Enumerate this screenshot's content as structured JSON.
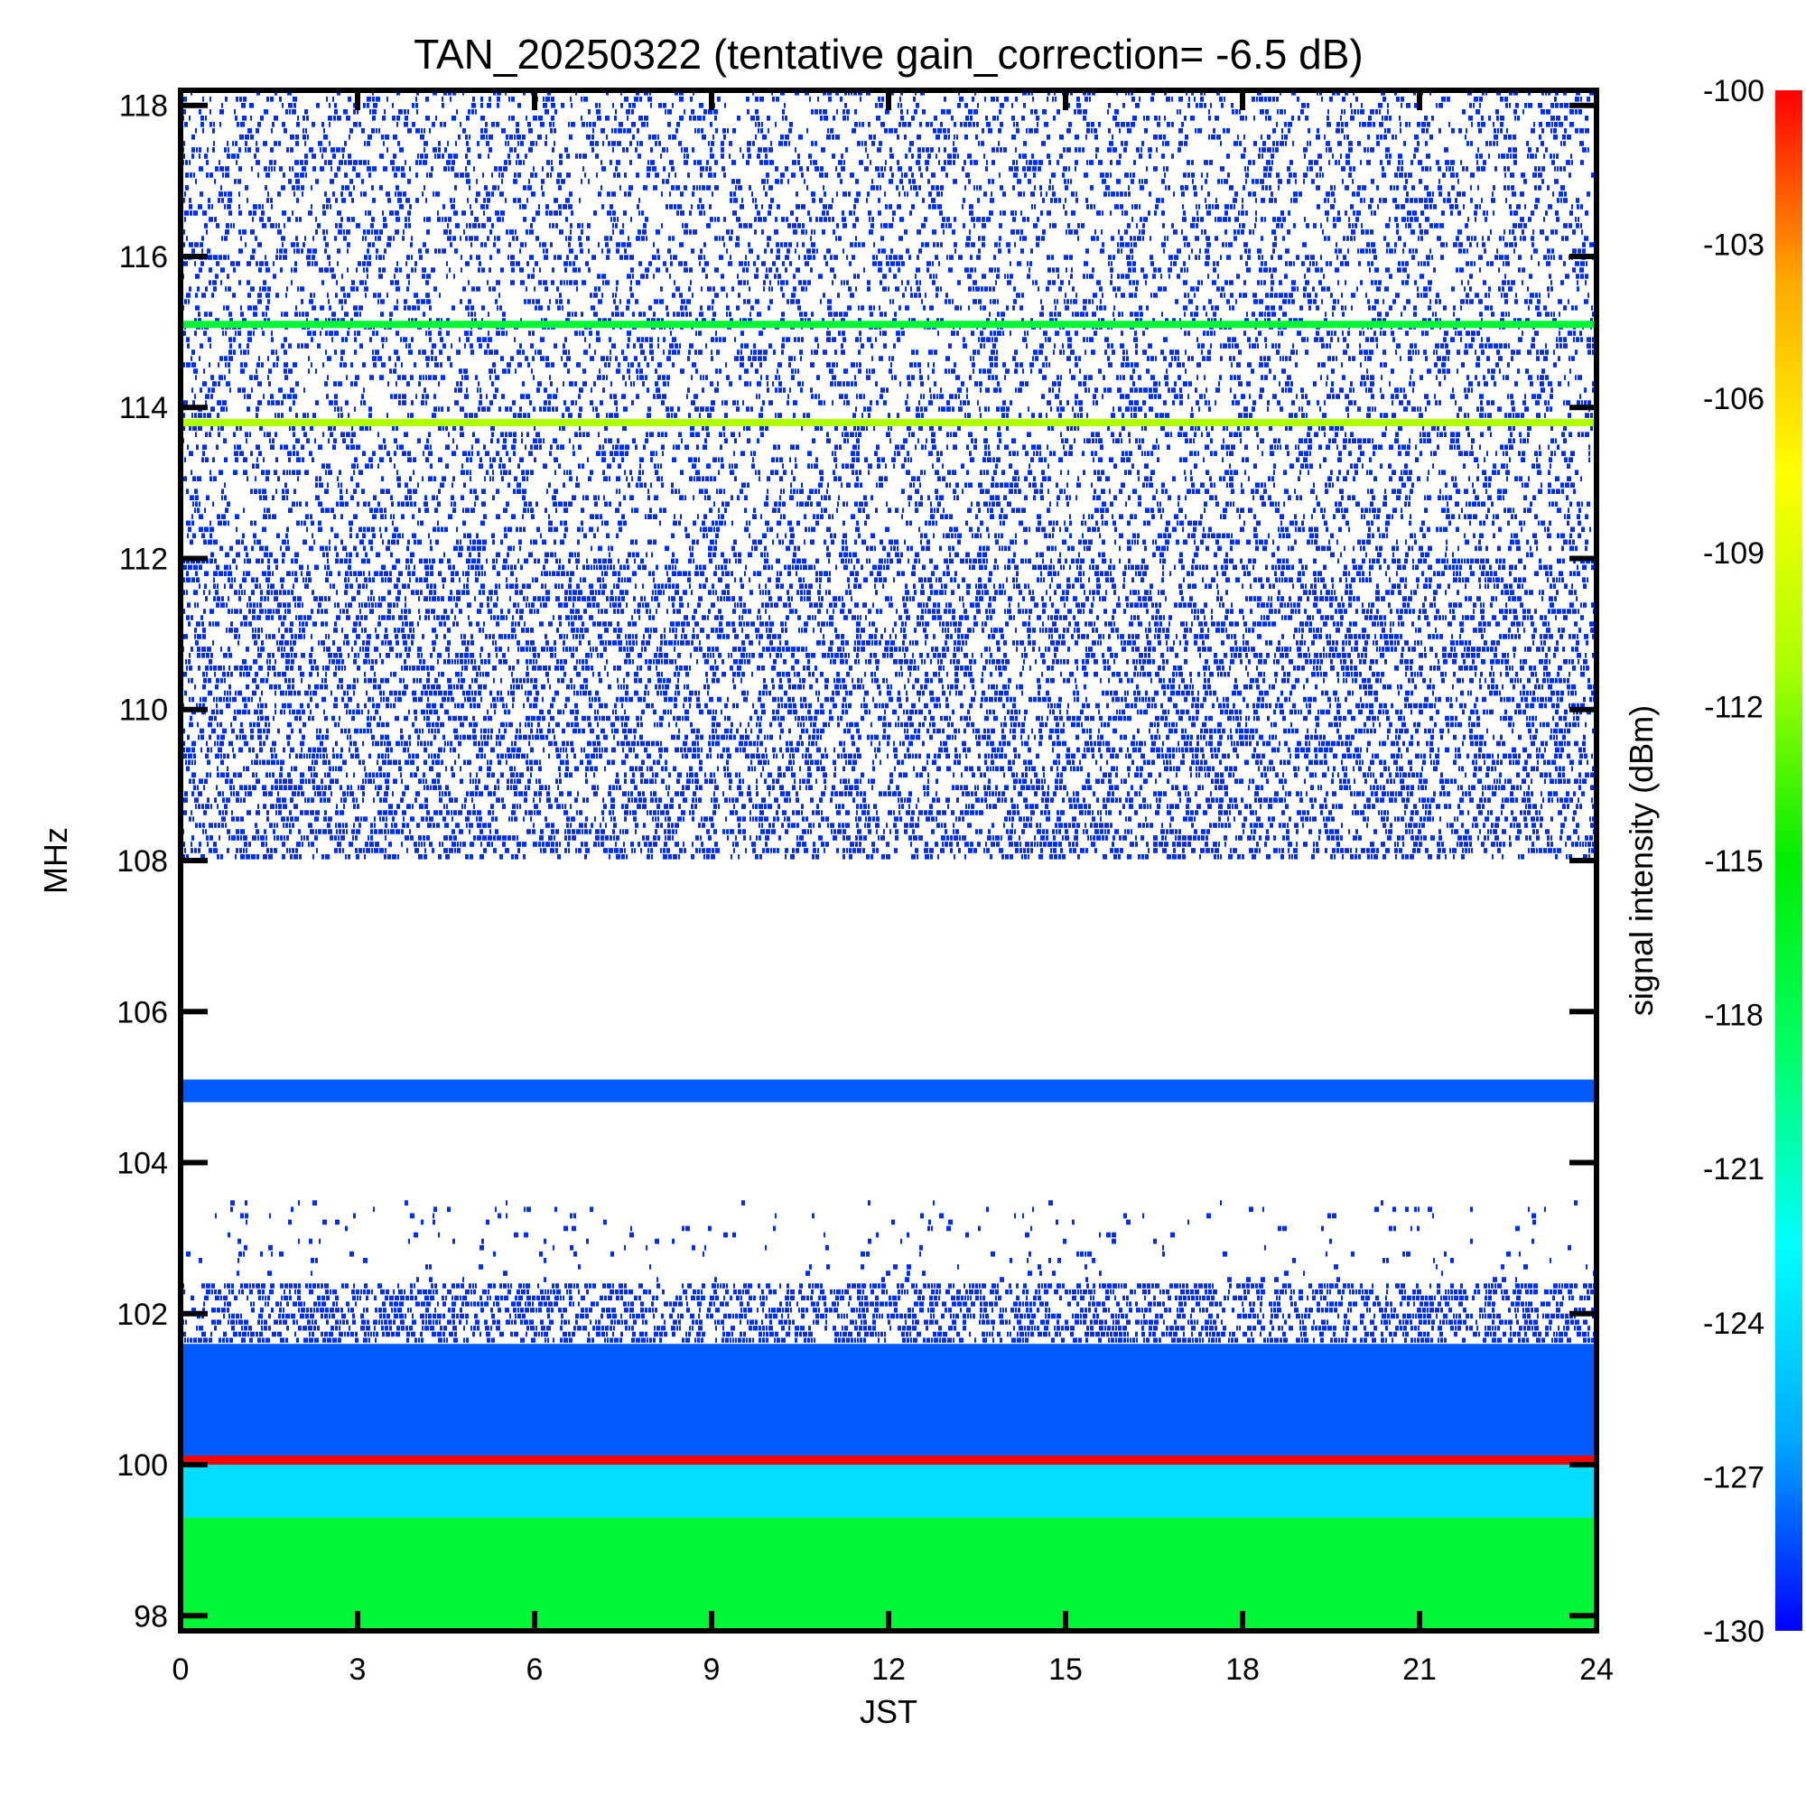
{
  "chart_data": {
    "type": "heatmap",
    "title": "TAN_20250322 (tentative gain_correction= -6.5 dB)",
    "xlabel": "JST",
    "ylabel": "MHz",
    "colorbar_label": "signal intensity (dBm)",
    "x_ticks": [
      "0",
      "3",
      "6",
      "9",
      "12",
      "15",
      "18",
      "21",
      "24"
    ],
    "y_ticks": [
      "98",
      "100",
      "102",
      "104",
      "106",
      "108",
      "110",
      "112",
      "114",
      "116",
      "118"
    ],
    "colorbar_ticks": [
      "-100",
      "-103",
      "-106",
      "-109",
      "-112",
      "-115",
      "-118",
      "-121",
      "-124",
      "-127",
      "-130"
    ],
    "xlim": [
      0,
      24
    ],
    "ylim": [
      97.8,
      118.2
    ],
    "clim": [
      -130,
      -100
    ],
    "colormap": [
      "#0000ff",
      "#00aaff",
      "#00ffff",
      "#00ff66",
      "#00ee00",
      "#aaff00",
      "#ffff00",
      "#ffaa00",
      "#ff0000"
    ],
    "bands": [
      {
        "f_min": 97.8,
        "f_max": 99.3,
        "dbm": -117,
        "coverage": 1.0
      },
      {
        "f_min": 99.3,
        "f_max": 100.0,
        "dbm": -124,
        "coverage": 1.0
      },
      {
        "f_min": 100.0,
        "f_max": 100.12,
        "dbm": -100,
        "coverage": 1.0
      },
      {
        "f_min": 100.12,
        "f_max": 101.6,
        "dbm": -128,
        "coverage": 1.0
      },
      {
        "f_min": 101.6,
        "f_max": 102.4,
        "dbm": -129,
        "coverage": 0.55
      },
      {
        "f_min": 102.4,
        "f_max": 103.5,
        "dbm": -129,
        "coverage": 0.05
      },
      {
        "f_min": 104.8,
        "f_max": 105.1,
        "dbm": -128,
        "coverage": 1.0
      },
      {
        "f_min": 108.0,
        "f_max": 112.0,
        "dbm": -129,
        "coverage": 0.45
      },
      {
        "f_min": 112.0,
        "f_max": 118.2,
        "dbm": -129,
        "coverage": 0.3
      }
    ],
    "lines": [
      {
        "freq": 113.8,
        "dbm": -111
      },
      {
        "freq": 115.1,
        "dbm": -117
      }
    ]
  }
}
